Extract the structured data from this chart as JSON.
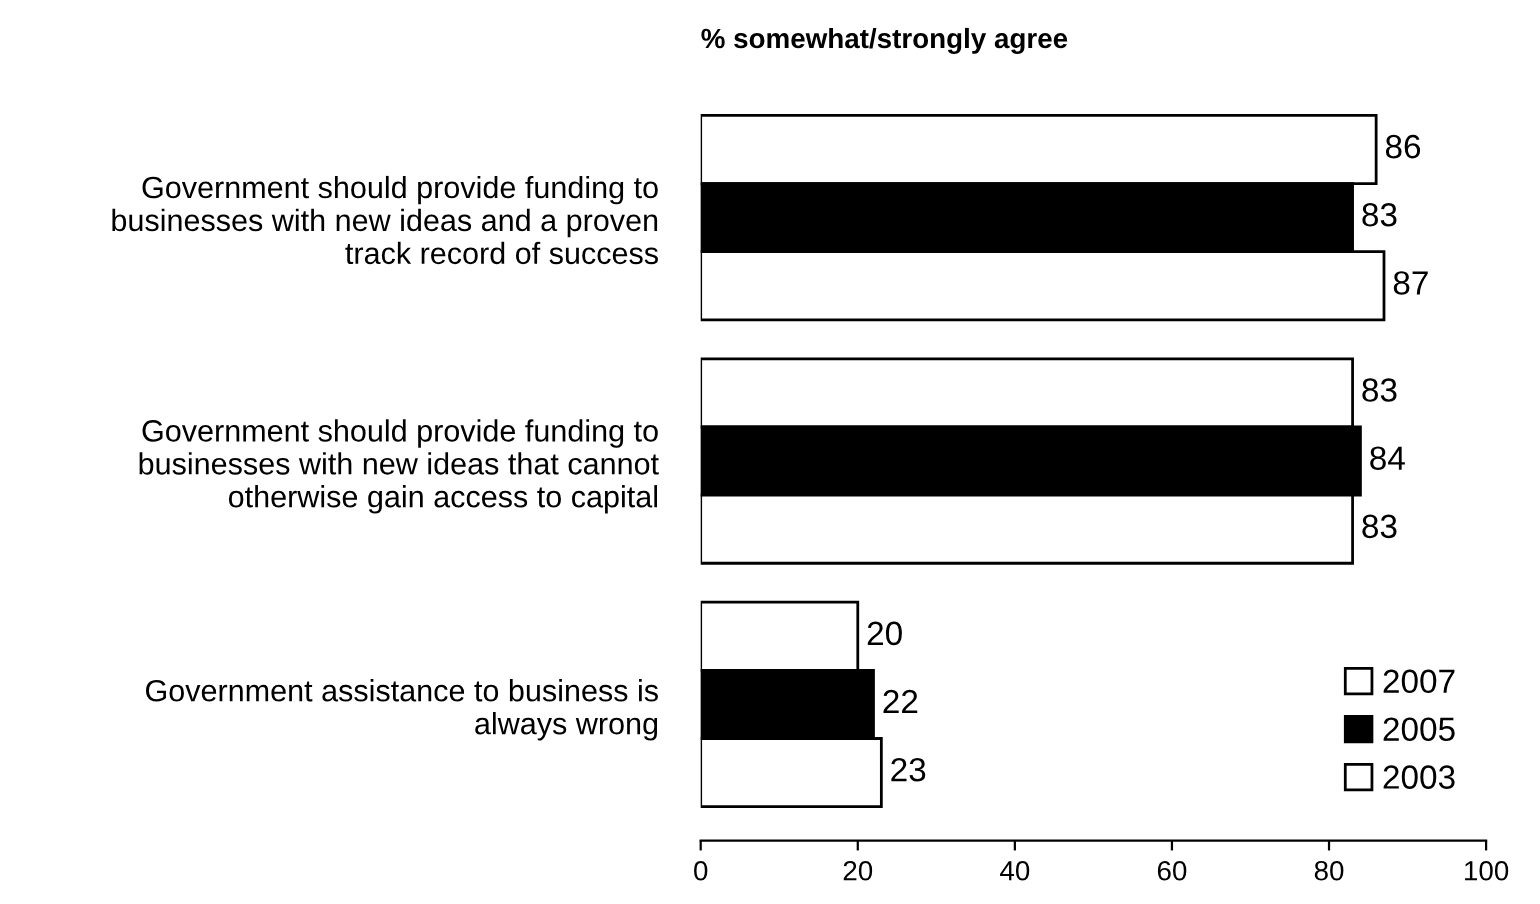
{
  "chart_data": {
    "type": "bar",
    "orientation": "horizontal",
    "title": "% somewhat/strongly agree",
    "categories": [
      "Government should provide funding to\nbusinesses with new ideas and a proven\ntrack record of success",
      "Government should provide funding to\nbusinesses with new ideas that cannot\notherwise gain access to capital",
      "Government assistance to business is\nalways wrong"
    ],
    "series": [
      {
        "name": "2007",
        "color": "#ffffff",
        "values": [
          86,
          83,
          20
        ]
      },
      {
        "name": "2005",
        "color": "#000000",
        "values": [
          83,
          84,
          22
        ]
      },
      {
        "name": "2003",
        "color": "#ffffff",
        "values": [
          87,
          83,
          23
        ]
      }
    ],
    "xlim": [
      0,
      100
    ],
    "xticks": [
      0,
      20,
      40,
      60,
      80,
      100
    ],
    "data_labels": true,
    "legend": "bottom right",
    "grid": false
  }
}
